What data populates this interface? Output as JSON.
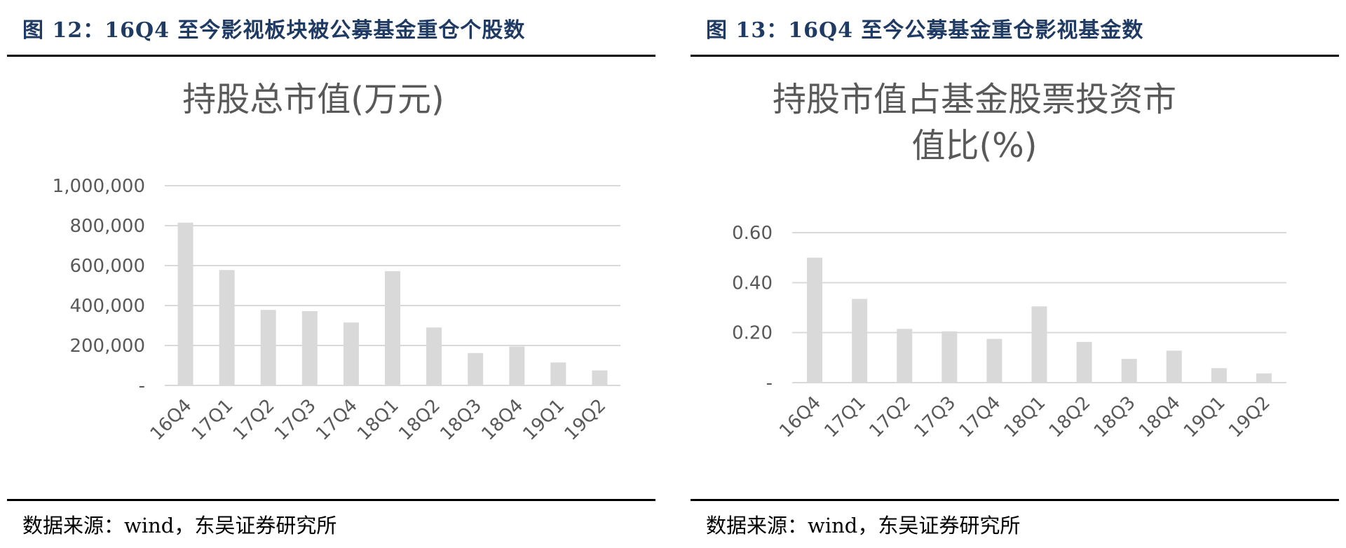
{
  "panels": [
    {
      "figure_title": "图 12：16Q4 至今影视板块被公募基金重仓个股数",
      "source": "数据来源：wind，东吴证券研究所"
    },
    {
      "figure_title": "图 13：16Q4 至今公募基金重仓影视基金数",
      "source": "数据来源：wind，东吴证券研究所"
    }
  ],
  "colors": {
    "bar": "#d9d9d9",
    "grid": "#d9d9d9",
    "title_blue": "#1f3b63",
    "text_gray": "#595959"
  },
  "chart_data": [
    {
      "type": "bar",
      "title_lines": [
        "持股总市值(万元)"
      ],
      "categories": [
        "16Q4",
        "17Q1",
        "17Q2",
        "17Q3",
        "17Q4",
        "18Q1",
        "18Q2",
        "18Q3",
        "18Q4",
        "19Q1",
        "19Q2"
      ],
      "values": [
        815000,
        578000,
        378000,
        372000,
        315000,
        572000,
        290000,
        162000,
        195000,
        115000,
        75000
      ],
      "ylim": [
        0,
        1000000
      ],
      "yticks": [
        0,
        200000,
        400000,
        600000,
        800000,
        1000000
      ],
      "ytick_labels": [
        "-",
        "200,000",
        "400,000",
        "600,000",
        "800,000",
        "1,000,000"
      ],
      "grid": true
    },
    {
      "type": "bar",
      "title_lines": [
        "持股市值占基金股票投资市",
        "值比(%)"
      ],
      "categories": [
        "16Q4",
        "17Q1",
        "17Q2",
        "17Q3",
        "17Q4",
        "18Q1",
        "18Q2",
        "18Q3",
        "18Q4",
        "19Q1",
        "19Q2"
      ],
      "values": [
        0.5,
        0.335,
        0.215,
        0.205,
        0.175,
        0.305,
        0.163,
        0.095,
        0.128,
        0.058,
        0.037
      ],
      "ylim": [
        0,
        0.6
      ],
      "yticks": [
        0,
        0.2,
        0.4,
        0.6
      ],
      "ytick_labels": [
        "-",
        "0.20",
        "0.40",
        "0.60"
      ],
      "grid": true
    }
  ]
}
